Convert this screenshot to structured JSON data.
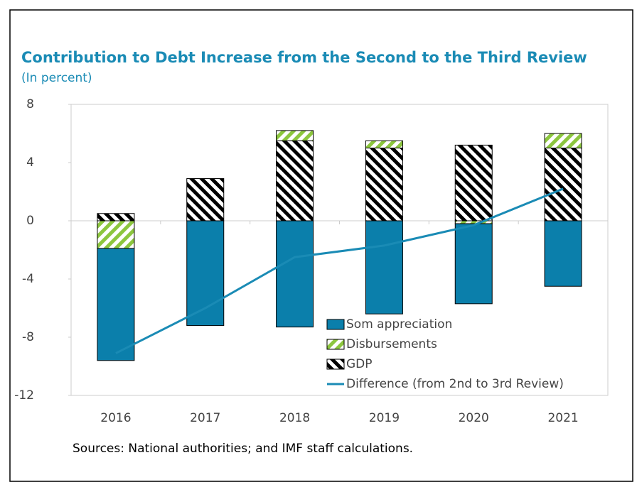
{
  "chart_data": {
    "type": "bar",
    "title": "Contribution to Debt Increase from the Second to the Third Review",
    "subtitle": "(In percent)",
    "source": "Sources: National authorities; and IMF staff calculations.",
    "categories": [
      "2016",
      "2017",
      "2018",
      "2019",
      "2020",
      "2021"
    ],
    "series": [
      {
        "name": "Som appreciation",
        "color": "#0b7fab",
        "values": [
          -7.7,
          -7.2,
          -7.3,
          -6.4,
          -5.5,
          -4.5
        ]
      },
      {
        "name": "Disbursements",
        "color": "#8cc63e",
        "pattern": "hatch-forward",
        "values": [
          -1.9,
          0,
          0.7,
          0.5,
          -0.2,
          1.0
        ]
      },
      {
        "name": "GDP",
        "color": "#000000",
        "pattern": "hatch-back",
        "values": [
          0.5,
          2.9,
          5.5,
          5.0,
          5.2,
          5.0
        ]
      },
      {
        "name": "Difference (from 2nd to 3rd Review)",
        "type": "line",
        "color": "#1a8bb5",
        "values": [
          -9.1,
          -6.0,
          -2.5,
          -1.7,
          -0.3,
          2.2
        ]
      }
    ],
    "ylim": [
      -12,
      8
    ],
    "yticks": [
      -12,
      -8,
      -4,
      0,
      4,
      8
    ],
    "grid": false,
    "legend": "lower right"
  }
}
